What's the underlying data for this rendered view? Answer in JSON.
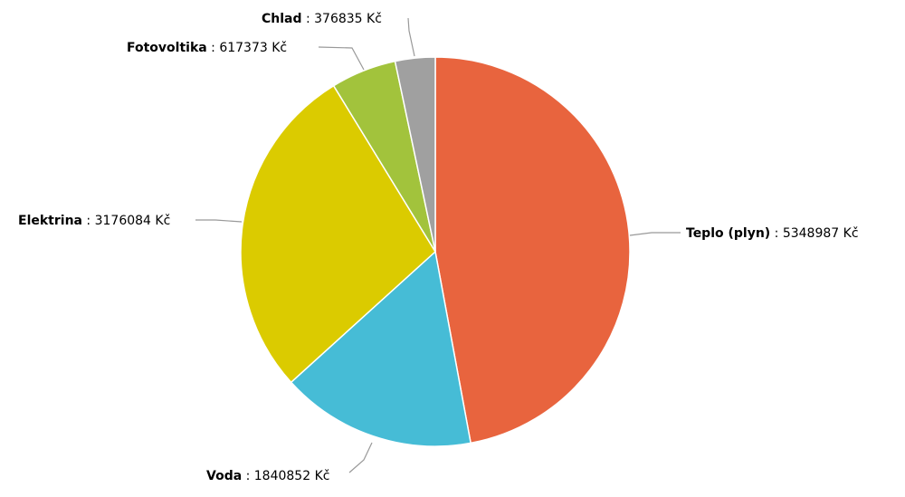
{
  "chart_data": {
    "type": "pie",
    "currency": "Kč",
    "slices": [
      {
        "name": "Teplo (plyn)",
        "value": 5348987,
        "color": "#e8643e"
      },
      {
        "name": "Voda",
        "value": 1840852,
        "color": "#46bcd6"
      },
      {
        "name": "Elektrina",
        "value": 3176084,
        "color": "#dbcb00"
      },
      {
        "name": "Fotovoltika",
        "value": 617373,
        "color": "#a2c33c"
      },
      {
        "name": "Chlad",
        "value": 376835,
        "color": "#a0a0a0"
      }
    ]
  }
}
